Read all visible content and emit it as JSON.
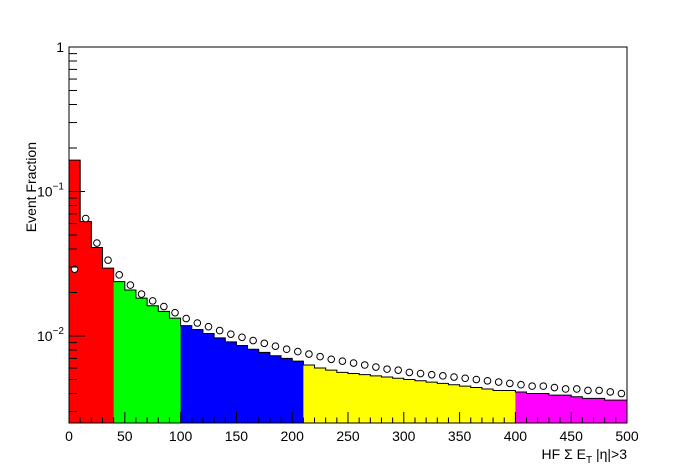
{
  "chart_data": {
    "type": "bar",
    "xlabel": "HF Σ E_T |η|>3",
    "xlabel_parts": {
      "main": "HF Σ E",
      "subscript": "T",
      "suffix": " |η|>3"
    },
    "ylabel": "Event Fraction",
    "xlim": [
      0,
      500
    ],
    "ylim": [
      0.0025,
      1
    ],
    "yscale": "log",
    "grid": false,
    "x_ticks": [
      0,
      50,
      100,
      150,
      200,
      250,
      300,
      350,
      400,
      450,
      500
    ],
    "x_tick_labels": [
      "0",
      "50",
      "100",
      "150",
      "200",
      "250",
      "300",
      "350",
      "400",
      "450",
      "500"
    ],
    "y_ticks": [
      {
        "value": 1,
        "base": "1",
        "exp": ""
      },
      {
        "value": 0.1,
        "base": "10",
        "exp": "−1"
      },
      {
        "value": 0.01,
        "base": "10",
        "exp": "−2"
      }
    ],
    "bin_width": 10,
    "bin_starts": [
      0,
      10,
      20,
      30,
      40,
      50,
      60,
      70,
      80,
      90,
      100,
      110,
      120,
      130,
      140,
      150,
      160,
      170,
      180,
      190,
      200,
      210,
      220,
      230,
      240,
      250,
      260,
      270,
      280,
      290,
      300,
      310,
      320,
      330,
      340,
      350,
      360,
      370,
      380,
      390,
      400,
      410,
      420,
      430,
      440,
      450,
      460,
      470,
      480,
      490
    ],
    "histogram_values": [
      0.165,
      0.062,
      0.041,
      0.0295,
      0.0238,
      0.0208,
      0.0183,
      0.0162,
      0.0148,
      0.0133,
      0.0118,
      0.0111,
      0.0104,
      0.0097,
      0.0091,
      0.0086,
      0.0081,
      0.0077,
      0.0073,
      0.007,
      0.0067,
      0.0063,
      0.006,
      0.0058,
      0.0056,
      0.0055,
      0.0054,
      0.0053,
      0.0052,
      0.0051,
      0.005,
      0.0049,
      0.0048,
      0.0047,
      0.0046,
      0.0045,
      0.0044,
      0.0043,
      0.0042,
      0.0042,
      0.0041,
      0.004,
      0.004,
      0.0039,
      0.0039,
      0.0038,
      0.0037,
      0.0037,
      0.0036,
      0.0036
    ],
    "bin_colors": [
      "#ff0000",
      "#ff0000",
      "#ff0000",
      "#ff0000",
      "#00ff00",
      "#00ff00",
      "#00ff00",
      "#00ff00",
      "#00ff00",
      "#00ff00",
      "#0000ff",
      "#0000ff",
      "#0000ff",
      "#0000ff",
      "#0000ff",
      "#0000ff",
      "#0000ff",
      "#0000ff",
      "#0000ff",
      "#0000ff",
      "#0000ff",
      "#ffff00",
      "#ffff00",
      "#ffff00",
      "#ffff00",
      "#ffff00",
      "#ffff00",
      "#ffff00",
      "#ffff00",
      "#ffff00",
      "#ffff00",
      "#ffff00",
      "#ffff00",
      "#ffff00",
      "#ffff00",
      "#ffff00",
      "#ffff00",
      "#ffff00",
      "#ffff00",
      "#ffff00",
      "#ff00ff",
      "#ff00ff",
      "#ff00ff",
      "#ff00ff",
      "#ff00ff",
      "#ff00ff",
      "#ff00ff",
      "#ff00ff",
      "#ff00ff",
      "#ff00ff"
    ],
    "band_colors": {
      "0-40": "#ff0000",
      "40-100": "#00ff00",
      "100-210": "#0000ff",
      "210-400": "#ffff00",
      "400-500": "#ff00ff"
    },
    "marker_series": {
      "marker": "open-circle",
      "x": [
        5,
        15,
        25,
        35,
        45,
        55,
        65,
        75,
        85,
        95,
        105,
        115,
        125,
        135,
        145,
        155,
        165,
        175,
        185,
        195,
        205,
        215,
        225,
        235,
        245,
        255,
        265,
        275,
        285,
        295,
        305,
        315,
        325,
        335,
        345,
        355,
        365,
        375,
        385,
        395,
        405,
        415,
        425,
        435,
        445,
        455,
        465,
        475,
        485,
        495
      ],
      "y": [
        0.029,
        0.065,
        0.044,
        0.0335,
        0.0265,
        0.0225,
        0.0195,
        0.0175,
        0.016,
        0.0145,
        0.0132,
        0.0123,
        0.0116,
        0.0109,
        0.0103,
        0.0098,
        0.0093,
        0.0089,
        0.0085,
        0.0081,
        0.0078,
        0.0075,
        0.0072,
        0.0069,
        0.0067,
        0.0065,
        0.0063,
        0.0061,
        0.0059,
        0.0058,
        0.0056,
        0.0055,
        0.0054,
        0.0053,
        0.0052,
        0.0051,
        0.005,
        0.0049,
        0.0048,
        0.0047,
        0.0046,
        0.0045,
        0.0045,
        0.0044,
        0.0043,
        0.0043,
        0.0042,
        0.0042,
        0.0041,
        0.004
      ]
    }
  }
}
